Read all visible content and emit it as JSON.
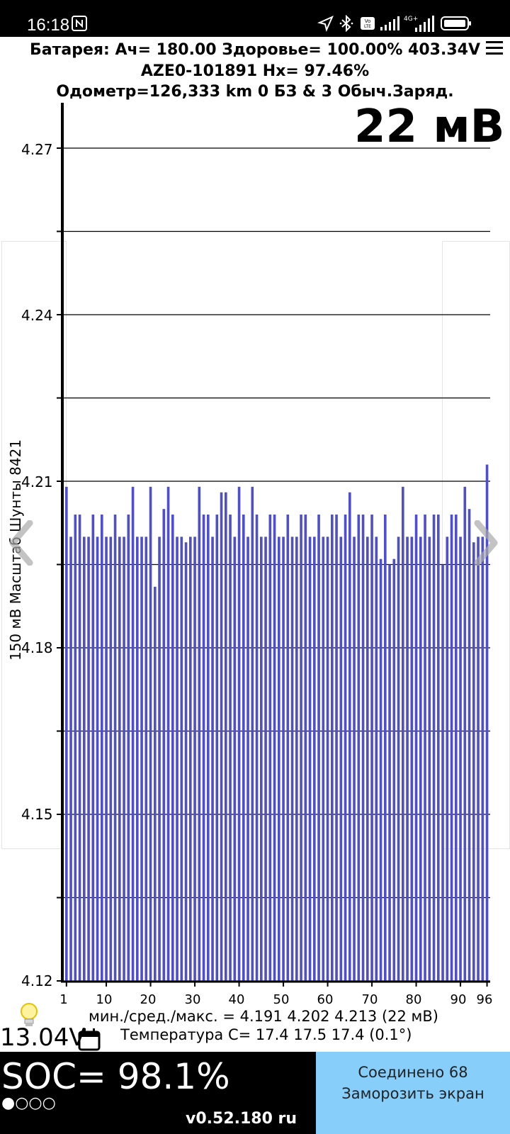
{
  "status_bar": {
    "time": "16:18",
    "icons": [
      "nfc-icon",
      "location-icon",
      "bluetooth-icon",
      "volte-icon",
      "signal-icon",
      "4g-signal-icon",
      "battery-icon"
    ]
  },
  "header": {
    "line1": "Батарея:  Ач= 180.00  Здоровье= 100.00%   403.34V",
    "line2": "AZE0-101891   Hx= 97.46%",
    "line3": "Одометр=126,333 km 0 БЗ & 3 Обыч.Заряд."
  },
  "spread_label": "22 мВ",
  "chart_data": {
    "type": "bar",
    "title": "",
    "xlabel": "",
    "ylabel": "150 мВ Масштаб  Шунты 8421",
    "ylim": [
      4.12,
      4.28
    ],
    "yticks": [
      "4.27",
      "4.24",
      "4.21",
      "4.18",
      "4.15",
      "4.12"
    ],
    "xticks": [
      "1",
      "10",
      "20",
      "30",
      "40",
      "50",
      "60",
      "70",
      "80",
      "90",
      "96"
    ],
    "grid": true,
    "bar_color": "#4f4fcc",
    "x": [
      1,
      2,
      3,
      4,
      5,
      6,
      7,
      8,
      9,
      10,
      11,
      12,
      13,
      14,
      15,
      16,
      17,
      18,
      19,
      20,
      21,
      22,
      23,
      24,
      25,
      26,
      27,
      28,
      29,
      30,
      31,
      32,
      33,
      34,
      35,
      36,
      37,
      38,
      39,
      40,
      41,
      42,
      43,
      44,
      45,
      46,
      47,
      48,
      49,
      50,
      51,
      52,
      53,
      54,
      55,
      56,
      57,
      58,
      59,
      60,
      61,
      62,
      63,
      64,
      65,
      66,
      67,
      68,
      69,
      70,
      71,
      72,
      73,
      74,
      75,
      76,
      77,
      78,
      79,
      80,
      81,
      82,
      83,
      84,
      85,
      86,
      87,
      88,
      89,
      90,
      91,
      92,
      93,
      94,
      95,
      96
    ],
    "values": [
      4.209,
      4.2,
      4.204,
      4.204,
      4.2,
      4.2,
      4.204,
      4.2,
      4.204,
      4.2,
      4.2,
      4.204,
      4.2,
      4.2,
      4.204,
      4.209,
      4.2,
      4.2,
      4.2,
      4.209,
      4.191,
      4.2,
      4.205,
      4.209,
      4.204,
      4.2,
      4.2,
      4.199,
      4.2,
      4.2,
      4.209,
      4.204,
      4.204,
      4.2,
      4.204,
      4.208,
      4.208,
      4.204,
      4.2,
      4.209,
      4.204,
      4.2,
      4.209,
      4.204,
      4.2,
      4.2,
      4.204,
      4.204,
      4.2,
      4.2,
      4.204,
      4.2,
      4.2,
      4.204,
      4.204,
      4.2,
      4.2,
      4.204,
      4.2,
      4.2,
      4.204,
      4.204,
      4.2,
      4.204,
      4.208,
      4.2,
      4.204,
      4.204,
      4.2,
      4.204,
      4.2,
      4.196,
      4.204,
      4.195,
      4.196,
      4.2,
      4.209,
      4.2,
      4.2,
      4.204,
      4.2,
      4.204,
      4.2,
      4.204,
      4.204,
      4.195,
      4.2,
      4.204,
      4.204,
      4.2,
      4.209,
      4.205,
      4.199,
      4.2,
      4.2,
      4.213
    ]
  },
  "stats": {
    "line1": "мин./сред./макс. = 4.191 4.202 4.213  (22 мВ)",
    "line2": "Температура С= 17.4  17.5  17.4  (0.1°)"
  },
  "aux_voltage": "13.04V",
  "footer": {
    "soc": "SOC= 98.1%",
    "dots": "●○○○",
    "version": "v0.52.180 ru",
    "connected": "Соединено 68",
    "freeze": "Заморозить экран"
  }
}
